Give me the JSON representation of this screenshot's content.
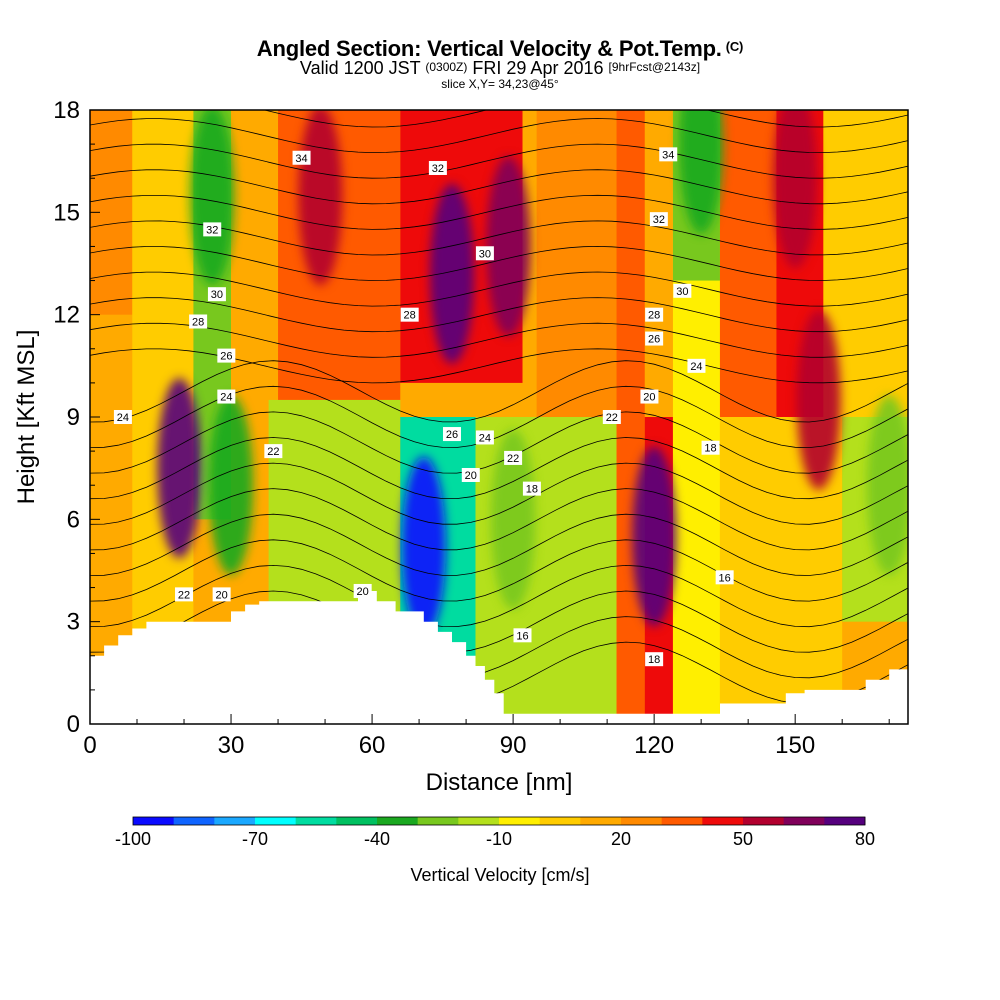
{
  "title": {
    "main": "Angled Section: Vertical Velocity & Pot.Temp.",
    "main_unit": "(C)",
    "valid_prefix": "Valid 1200 JST",
    "valid_utc": "(0300Z)",
    "valid_date": "FRI 29 Apr 2016",
    "forecast": "[9hrFcst@2143z]",
    "slice": "slice X,Y= 34,23@45°"
  },
  "chart_data": {
    "type": "heatmap",
    "xlabel": "Distance [nm]",
    "ylabel": "Height [Kft MSL]",
    "xlim": [
      0,
      174
    ],
    "ylim": [
      0,
      18
    ],
    "x_ticks": [
      0,
      30,
      60,
      90,
      120,
      150
    ],
    "y_ticks": [
      0,
      3,
      6,
      9,
      12,
      15,
      18
    ],
    "colorbar": {
      "label": "Vertical Velocity [cm/s]",
      "tick_labels": [
        "-100",
        "-70",
        "-40",
        "-10",
        "20",
        "50",
        "80"
      ],
      "tick_values": [
        -100,
        -70,
        -40,
        -10,
        20,
        50,
        80
      ],
      "bins": [
        -100,
        -90,
        -80,
        -70,
        -60,
        -50,
        -40,
        -30,
        -20,
        -10,
        0,
        10,
        20,
        30,
        40,
        50,
        60,
        70,
        80
      ],
      "colors": [
        "#0a0aff",
        "#0f64ff",
        "#1aa8ff",
        "#00ffff",
        "#00dca0",
        "#00c060",
        "#1aa820",
        "#78c81e",
        "#b4e01c",
        "#ffef00",
        "#ffcc00",
        "#ffaa00",
        "#ff8a00",
        "#ff5a00",
        "#ee0a0a",
        "#b2002e",
        "#80005a",
        "#55007d"
      ]
    },
    "velocity_cells": [
      {
        "x": 19,
        "y": 7.5,
        "value": 80
      },
      {
        "x": 49,
        "y": 15.5,
        "value": 50
      },
      {
        "x": 77,
        "y": 13.2,
        "value": 80
      },
      {
        "x": 89,
        "y": 14,
        "value": 60
      },
      {
        "x": 120,
        "y": 5.5,
        "value": 80
      },
      {
        "x": 150,
        "y": 16,
        "value": 50
      },
      {
        "x": 155,
        "y": 9.5,
        "value": 50
      },
      {
        "x": 71,
        "y": 5.2,
        "value": -100
      },
      {
        "x": 26,
        "y": 15.5,
        "value": -40
      },
      {
        "x": 30,
        "y": 7,
        "value": -40
      },
      {
        "x": 130,
        "y": 17,
        "value": -40
      },
      {
        "x": 170,
        "y": 7,
        "value": -30
      },
      {
        "x": 90,
        "y": 6,
        "value": -30
      }
    ],
    "terrain_profile": {
      "x": [
        0,
        3,
        6,
        9,
        12,
        19,
        27,
        30,
        33,
        36,
        54,
        57,
        61,
        65,
        68,
        71,
        74,
        77,
        80,
        82,
        84,
        86,
        88,
        131,
        134,
        137,
        142,
        148,
        152,
        165,
        170,
        174
      ],
      "height": [
        2.0,
        2.3,
        2.6,
        2.8,
        3.0,
        3.0,
        3.0,
        3.3,
        3.5,
        3.6,
        3.6,
        3.9,
        3.6,
        3.3,
        3.3,
        3.0,
        2.7,
        2.4,
        2.0,
        1.7,
        1.3,
        0.9,
        0.3,
        0.3,
        0.6,
        0.6,
        0.6,
        0.9,
        1.0,
        1.3,
        1.6,
        1.6
      ]
    },
    "contour_labels": [
      {
        "text": "34",
        "x": 45,
        "y": 16.6
      },
      {
        "text": "32",
        "x": 74,
        "y": 16.3
      },
      {
        "text": "34",
        "x": 123,
        "y": 16.7
      },
      {
        "text": "32",
        "x": 121,
        "y": 14.8
      },
      {
        "text": "32",
        "x": 26,
        "y": 14.5
      },
      {
        "text": "30",
        "x": 84,
        "y": 13.8
      },
      {
        "text": "30",
        "x": 27,
        "y": 12.6
      },
      {
        "text": "30",
        "x": 126,
        "y": 12.7
      },
      {
        "text": "28",
        "x": 23,
        "y": 11.8
      },
      {
        "text": "28",
        "x": 68,
        "y": 12
      },
      {
        "text": "28",
        "x": 120,
        "y": 12
      },
      {
        "text": "26",
        "x": 120,
        "y": 11.3
      },
      {
        "text": "26",
        "x": 29,
        "y": 10.8
      },
      {
        "text": "24",
        "x": 129,
        "y": 10.5
      },
      {
        "text": "24",
        "x": 29,
        "y": 9.6
      },
      {
        "text": "24",
        "x": 7,
        "y": 9.0
      },
      {
        "text": "20",
        "x": 119,
        "y": 9.6
      },
      {
        "text": "22",
        "x": 111,
        "y": 9.0
      },
      {
        "text": "26",
        "x": 77,
        "y": 8.5
      },
      {
        "text": "24",
        "x": 84,
        "y": 8.4
      },
      {
        "text": "22",
        "x": 39,
        "y": 8.0
      },
      {
        "text": "22",
        "x": 90,
        "y": 7.8
      },
      {
        "text": "18",
        "x": 132,
        "y": 8.1
      },
      {
        "text": "20",
        "x": 81,
        "y": 7.3
      },
      {
        "text": "18",
        "x": 94,
        "y": 6.9
      },
      {
        "text": "16",
        "x": 135,
        "y": 4.3
      },
      {
        "text": "22",
        "x": 20,
        "y": 3.8
      },
      {
        "text": "20",
        "x": 28,
        "y": 3.8
      },
      {
        "text": "20",
        "x": 58,
        "y": 3.9
      },
      {
        "text": "16",
        "x": 92,
        "y": 2.6
      },
      {
        "text": "18",
        "x": 120,
        "y": 1.9
      }
    ]
  }
}
